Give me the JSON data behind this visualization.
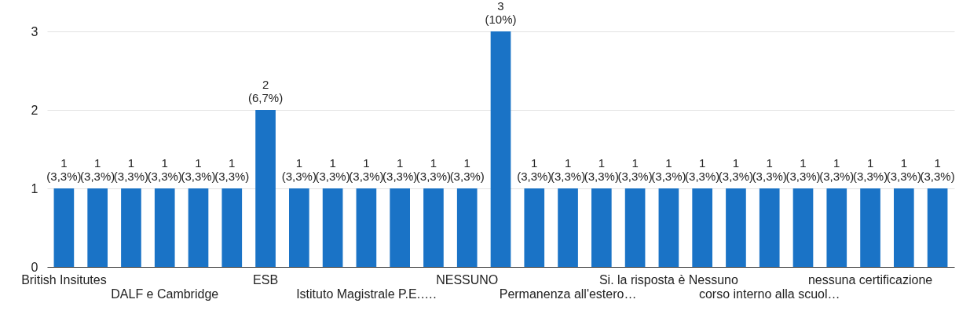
{
  "chart_data": {
    "type": "bar",
    "categories": [
      "British Insitutes",
      null,
      null,
      "DALF e Cambridge",
      null,
      null,
      "ESB",
      null,
      null,
      "Istituto Magistrale P.E.….",
      null,
      null,
      "NESSUNO",
      null,
      null,
      "Permanenza all'estero…",
      null,
      null,
      "Si. la risposta è Nessuno",
      null,
      null,
      "corso interno alla scuol…",
      null,
      null,
      "nessuna certificazione",
      null,
      null
    ],
    "series": [
      {
        "color": "#1a73c6",
        "values": [
          1,
          1,
          1,
          1,
          1,
          1,
          2,
          1,
          1,
          1,
          1,
          1,
          1,
          3,
          1,
          1,
          1,
          1,
          1,
          1,
          1,
          1,
          1,
          1,
          1,
          1,
          1
        ],
        "value_labels": [
          "1 (3,3%)",
          "1 (3,3%)",
          "1 (3,3%)",
          "1 (3,3%)",
          "1 (3,3%)",
          "1 (3,3%)",
          "2 (6,7%)",
          "1 (3,3%)",
          "1 (3,3%)",
          "1 (3,3%)",
          "1 (3,3%)",
          "1 (3,3%)",
          "1 (3,3%)",
          "3 (10%)",
          "1 (3,3%)",
          "1 (3,3%)",
          "1 (3,3%)",
          "1 (3,3%)",
          "1 (3,3%)",
          "1 (3,3%)",
          "1 (3,3%)",
          "1 (3,3%)",
          "1 (3,3%)",
          "1 (3,3%)",
          "1 (3,3%)",
          "1 (3,3%)",
          "1 (3,3%)"
        ]
      }
    ],
    "ylim": [
      0,
      3
    ],
    "yticks": [
      0,
      1,
      2,
      3
    ],
    "grid": "y"
  }
}
